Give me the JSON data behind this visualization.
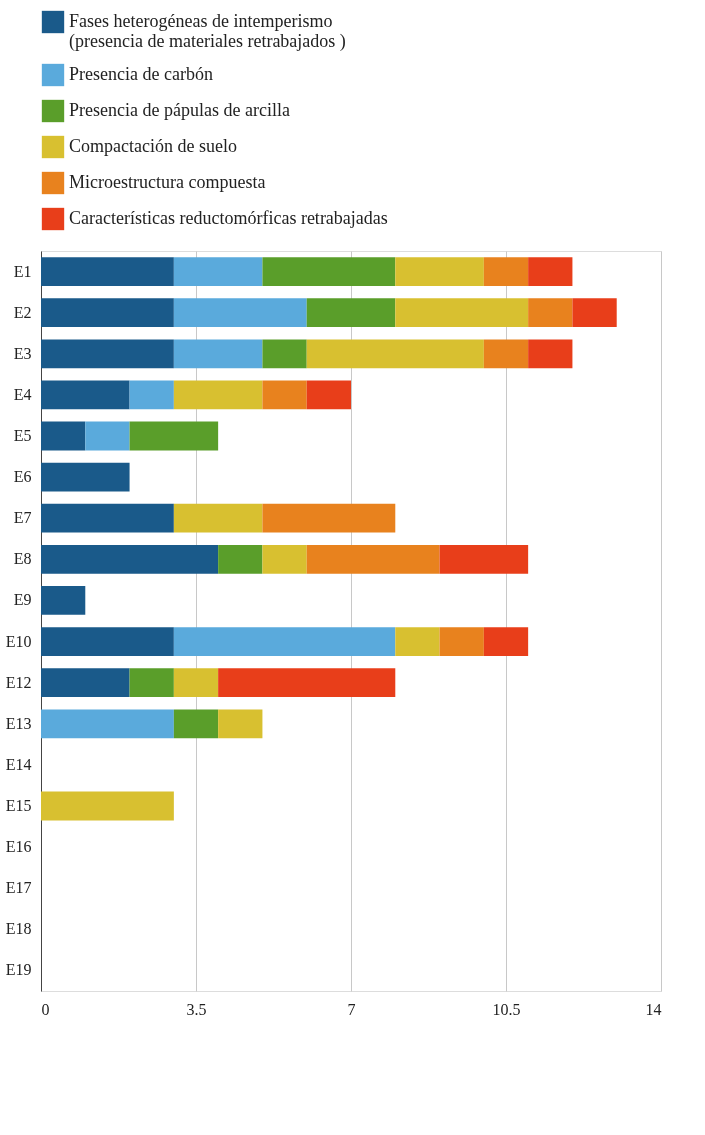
{
  "chart_data": {
    "type": "bar",
    "orientation": "horizontal",
    "stacked": true,
    "categories": [
      "E1",
      "E2",
      "E3",
      "E4",
      "E5",
      "E6",
      "E7",
      "E8",
      "E9",
      "E10",
      "E12",
      "E13",
      "E14",
      "E15",
      "E16",
      "E17",
      "E18",
      "E19"
    ],
    "series": [
      {
        "name": "Fases heterogéneas de intemperismo (presencia de materiales retrabajados )",
        "color": "#1a5a8a",
        "values": [
          3,
          3,
          3,
          2,
          1,
          2,
          3,
          4,
          1,
          3,
          2,
          0,
          0,
          0,
          0,
          0,
          0,
          0
        ]
      },
      {
        "name": "Presencia de carbón",
        "color": "#5aaadc",
        "values": [
          2,
          3,
          2,
          1,
          1,
          0,
          0,
          0,
          0,
          5,
          0,
          3,
          0,
          0,
          0,
          0,
          0,
          0
        ]
      },
      {
        "name": "Presencia de pápulas de arcilla",
        "color": "#5a9e2a",
        "values": [
          3,
          2,
          1,
          0,
          2,
          0,
          0,
          1,
          0,
          0,
          1,
          1,
          0,
          0,
          0,
          0,
          0,
          0
        ]
      },
      {
        "name": "Compactación de suelo",
        "color": "#d8c030",
        "values": [
          2,
          3,
          4,
          2,
          0,
          0,
          2,
          1,
          0,
          1,
          1,
          1,
          0,
          3,
          0,
          0,
          0,
          0
        ]
      },
      {
        "name": "Microestructura compuesta",
        "color": "#e8821e",
        "values": [
          1,
          1,
          1,
          1,
          0,
          0,
          3,
          3,
          0,
          1,
          0,
          0,
          0,
          0,
          0,
          0,
          0,
          0
        ]
      },
      {
        "name": "Características reductomórficas retrabajadas",
        "color": "#e83e1a",
        "values": [
          1,
          1,
          1,
          1,
          0,
          0,
          0,
          2,
          0,
          1,
          4,
          0,
          0,
          0,
          0,
          0,
          0,
          0
        ]
      }
    ],
    "xlim": [
      0,
      14
    ],
    "xticks": [
      0,
      3.5,
      7,
      10.5,
      14
    ],
    "grid": "x",
    "legend": "top"
  }
}
